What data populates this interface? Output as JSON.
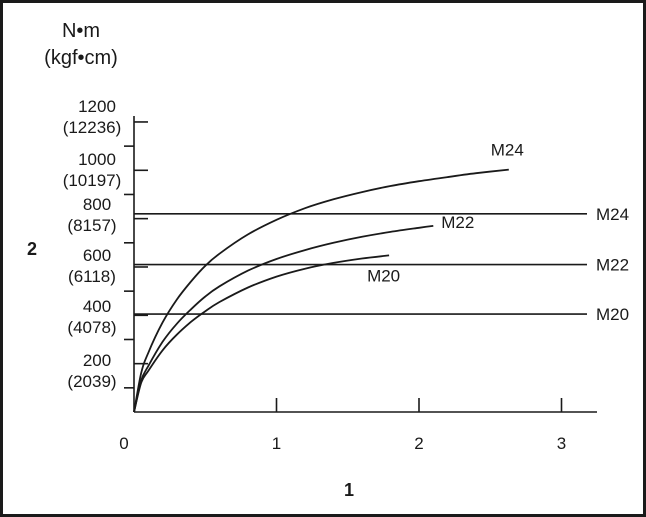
{
  "chart_data": {
    "type": "line",
    "y_unit": {
      "line1": "N•m",
      "line2": "(kgf•cm)"
    },
    "y_ticks": [
      {
        "value": 200,
        "label": "200",
        "sublabel": "(2039)"
      },
      {
        "value": 400,
        "label": "400",
        "sublabel": "(4078)"
      },
      {
        "value": 600,
        "label": "600",
        "sublabel": "(6118)"
      },
      {
        "value": 800,
        "label": "800",
        "sublabel": "(8157)"
      },
      {
        "value": 1000,
        "label": "1000",
        "sublabel": "(10197)"
      },
      {
        "value": 1200,
        "label": "1200",
        "sublabel": "(12236)"
      }
    ],
    "x_ticks": [
      {
        "value": 0,
        "label": "0"
      },
      {
        "value": 1,
        "label": "1"
      },
      {
        "value": 2,
        "label": "2"
      },
      {
        "value": 3,
        "label": "3"
      }
    ],
    "xlim": [
      0,
      3.25
    ],
    "ylim": [
      0,
      1200
    ],
    "x_callout": "1",
    "y_callout": "2",
    "series": [
      {
        "name": "M24",
        "x": [
          0,
          0.05,
          0.1,
          0.2,
          0.3,
          0.4,
          0.5,
          0.6,
          0.8,
          1.0,
          1.2,
          1.4,
          1.6,
          1.8,
          2.0,
          2.2,
          2.4,
          2.63
        ],
        "y": [
          0,
          160,
          245,
          370,
          465,
          540,
          605,
          655,
          735,
          795,
          843,
          880,
          910,
          935,
          955,
          972,
          988,
          1003
        ]
      },
      {
        "name": "M22",
        "x": [
          0,
          0.05,
          0.1,
          0.2,
          0.3,
          0.4,
          0.5,
          0.6,
          0.8,
          1.0,
          1.2,
          1.4,
          1.6,
          1.8,
          2.0,
          2.1
        ],
        "y": [
          0,
          130,
          190,
          290,
          365,
          425,
          478,
          520,
          585,
          633,
          670,
          700,
          725,
          745,
          762,
          770
        ]
      },
      {
        "name": "M20",
        "x": [
          0,
          0.05,
          0.1,
          0.2,
          0.3,
          0.4,
          0.5,
          0.6,
          0.8,
          1.0,
          1.2,
          1.4,
          1.6,
          1.79
        ],
        "y": [
          0,
          120,
          170,
          255,
          320,
          373,
          417,
          455,
          515,
          560,
          593,
          617,
          635,
          648
        ]
      }
    ],
    "reference_lines": [
      {
        "label": "M24",
        "y": 820
      },
      {
        "label": "M22",
        "y": 610
      },
      {
        "label": "M20",
        "y": 405
      }
    ],
    "grid": false,
    "colors": {
      "ink": "#1a1a1a",
      "background": "#ffffff"
    }
  }
}
